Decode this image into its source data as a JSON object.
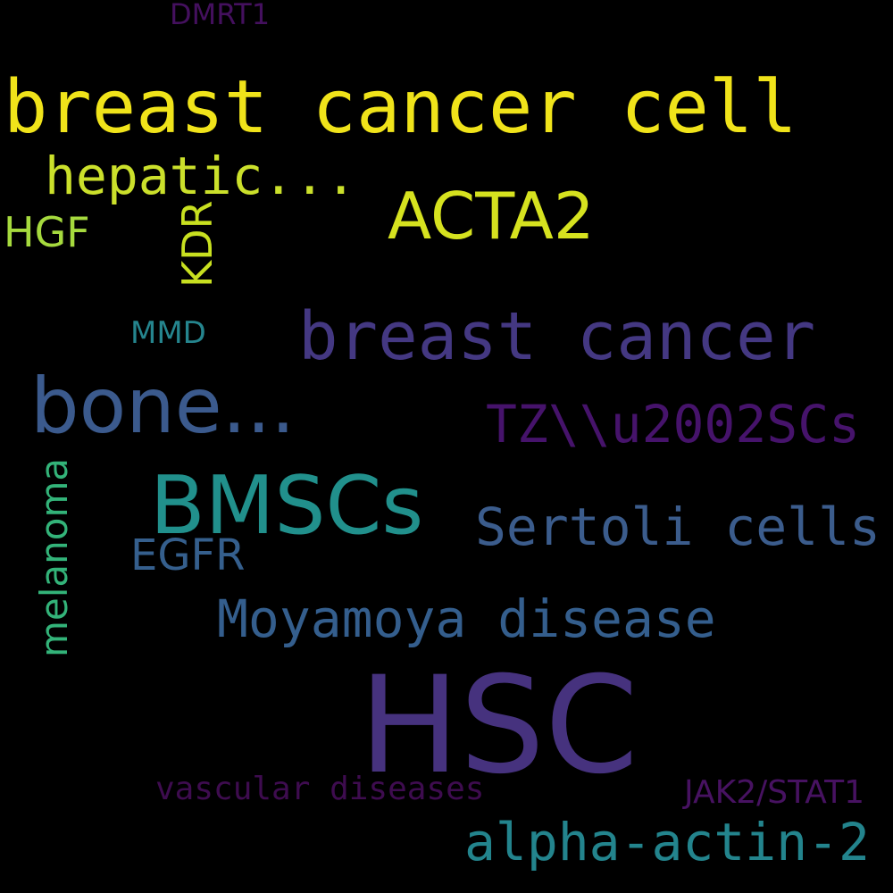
{
  "word_cloud": {
    "background": "#000000",
    "words": [
      {
        "key": "breast_cancer_cell",
        "text": "breast cancer cell",
        "color": "#f0e31a"
      },
      {
        "key": "hepatic",
        "text": "hepatic...",
        "color": "#cbe02b"
      },
      {
        "key": "acta2",
        "text": "ACTA2",
        "color": "#d6e21f"
      },
      {
        "key": "hgf",
        "text": "HGF",
        "color": "#a6da3e"
      },
      {
        "key": "kdr",
        "text": "KDR",
        "color": "#c8e020"
      },
      {
        "key": "dmrt1",
        "text": "DMRT1",
        "color": "#44105e"
      },
      {
        "key": "mmd",
        "text": "MMD",
        "color": "#25858e"
      },
      {
        "key": "breast_cancer",
        "text": "breast cancer",
        "color": "#443882"
      },
      {
        "key": "bone",
        "text": "bone...",
        "color": "#3b5a8d"
      },
      {
        "key": "tz_scs",
        "text": "TZ\\\\u2002SCs",
        "color": "#46136b"
      },
      {
        "key": "bmscs",
        "text": "BMSCs",
        "color": "#21908c"
      },
      {
        "key": "sertoli_cells",
        "text": "Sertoli cells",
        "color": "#3b5c8c"
      },
      {
        "key": "egfr",
        "text": "EGFR",
        "color": "#355f8d"
      },
      {
        "key": "melanoma",
        "text": "melanoma",
        "color": "#33b379"
      },
      {
        "key": "moyamoya_disease",
        "text": "Moyamoya disease",
        "color": "#345e8d"
      },
      {
        "key": "hsc",
        "text": "HSC",
        "color": "#46327e"
      },
      {
        "key": "vascular_diseases",
        "text": "vascular diseases",
        "color": "#3e0c4f"
      },
      {
        "key": "jak2_stat1",
        "text": "JAK2/STAT1",
        "color": "#471261"
      },
      {
        "key": "alpha_actin_2",
        "text": "alpha-actin-2",
        "color": "#23848d"
      }
    ]
  }
}
